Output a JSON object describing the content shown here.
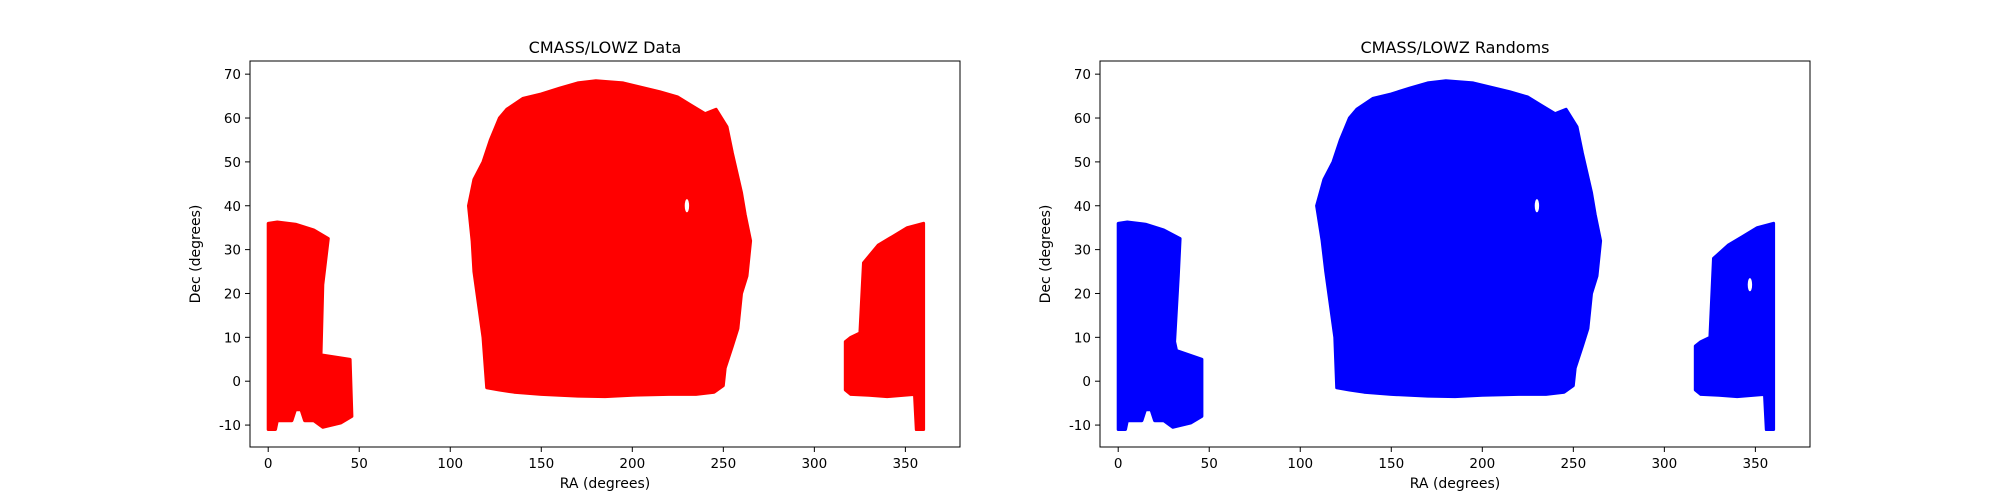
{
  "chart_data": [
    {
      "type": "scatter",
      "title": "CMASS/LOWZ Data",
      "xlabel": "RA (degrees)",
      "ylabel": "Dec (degrees)",
      "xlim": [
        -10,
        380
      ],
      "ylim": [
        -15,
        73
      ],
      "xticks": [
        0,
        50,
        100,
        150,
        200,
        250,
        300,
        350
      ],
      "yticks": [
        -10,
        0,
        10,
        20,
        30,
        40,
        50,
        60,
        70
      ],
      "grid": false,
      "color": "#ff0000",
      "regions": [
        {
          "name": "south-left",
          "boundary": [
            [
              0,
              -11
            ],
            [
              0,
              36
            ],
            [
              5,
              36.3
            ],
            [
              15,
              35.8
            ],
            [
              25,
              34.5
            ],
            [
              33,
              32.5
            ],
            [
              30,
              22
            ],
            [
              29,
              6
            ],
            [
              45,
              5
            ],
            [
              46,
              -8
            ],
            [
              40,
              -9.5
            ],
            [
              30,
              -10.5
            ],
            [
              25,
              -9
            ],
            [
              20,
              -9
            ],
            [
              18,
              -6.5
            ],
            [
              15,
              -6.5
            ],
            [
              13,
              -9
            ],
            [
              5,
              -9
            ],
            [
              4,
              -11
            ]
          ]
        },
        {
          "name": "north",
          "boundary": [
            [
              110,
              40
            ],
            [
              113,
              46
            ],
            [
              118,
              50
            ],
            [
              122,
              55
            ],
            [
              127,
              60
            ],
            [
              131,
              62
            ],
            [
              140,
              64.5
            ],
            [
              150,
              65.5
            ],
            [
              160,
              66.8
            ],
            [
              170,
              68
            ],
            [
              180,
              68.5
            ],
            [
              195,
              68
            ],
            [
              205,
              67
            ],
            [
              215,
              66
            ],
            [
              225,
              64.8
            ],
            [
              232,
              63
            ],
            [
              240,
              61
            ],
            [
              246,
              62
            ],
            [
              252,
              58
            ],
            [
              255,
              52
            ],
            [
              260,
              43
            ],
            [
              262,
              38
            ],
            [
              265,
              32
            ],
            [
              263,
              24
            ],
            [
              260,
              20
            ],
            [
              258,
              12
            ],
            [
              255,
              8
            ],
            [
              251,
              3
            ],
            [
              250,
              -1
            ],
            [
              245,
              -2.5
            ],
            [
              235,
              -3
            ],
            [
              220,
              -3
            ],
            [
              200,
              -3.2
            ],
            [
              185,
              -3.5
            ],
            [
              170,
              -3.4
            ],
            [
              150,
              -3
            ],
            [
              135,
              -2.5
            ],
            [
              127,
              -2
            ],
            [
              120,
              -1.5
            ],
            [
              118,
              10
            ],
            [
              113,
              25
            ],
            [
              112,
              32
            ]
          ]
        },
        {
          "name": "south-right",
          "boundary": [
            [
              317,
              9
            ],
            [
              320,
              10
            ],
            [
              325,
              11
            ],
            [
              327,
              27
            ],
            [
              335,
              31
            ],
            [
              343,
              33
            ],
            [
              351,
              35
            ],
            [
              360,
              36
            ],
            [
              360,
              -11
            ],
            [
              356,
              -11
            ],
            [
              355,
              -3
            ],
            [
              340,
              -3.5
            ],
            [
              330,
              -3.2
            ],
            [
              320,
              -3
            ],
            [
              317,
              -2
            ]
          ]
        }
      ],
      "holes": [
        {
          "ra": 230,
          "dec": 40,
          "rx": 1.2,
          "ry": 1.5
        }
      ]
    },
    {
      "type": "scatter",
      "title": "CMASS/LOWZ Randoms",
      "xlabel": "RA (degrees)",
      "ylabel": "Dec (degrees)",
      "xlim": [
        -10,
        380
      ],
      "ylim": [
        -15,
        73
      ],
      "xticks": [
        0,
        50,
        100,
        150,
        200,
        250,
        300,
        350
      ],
      "yticks": [
        -10,
        0,
        10,
        20,
        30,
        40,
        50,
        60,
        70
      ],
      "grid": false,
      "color": "#0000ff",
      "regions": [
        {
          "name": "south-left",
          "boundary": [
            [
              0,
              -11
            ],
            [
              0,
              36
            ],
            [
              5,
              36.3
            ],
            [
              15,
              35.8
            ],
            [
              25,
              34.5
            ],
            [
              34,
              32.5
            ],
            [
              33,
              24
            ],
            [
              31,
              9
            ],
            [
              32,
              7
            ],
            [
              46,
              5
            ],
            [
              46,
              -8
            ],
            [
              40,
              -9.5
            ],
            [
              30,
              -10.5
            ],
            [
              25,
              -9
            ],
            [
              20,
              -9
            ],
            [
              18,
              -6.5
            ],
            [
              15,
              -6.5
            ],
            [
              13,
              -9
            ],
            [
              5,
              -9
            ],
            [
              4,
              -11
            ]
          ]
        },
        {
          "name": "north",
          "boundary": [
            [
              109,
              40
            ],
            [
              113,
              46
            ],
            [
              118,
              50
            ],
            [
              122,
              55
            ],
            [
              127,
              60
            ],
            [
              131,
              62
            ],
            [
              140,
              64.5
            ],
            [
              150,
              65.5
            ],
            [
              160,
              66.8
            ],
            [
              170,
              68
            ],
            [
              180,
              68.5
            ],
            [
              195,
              68
            ],
            [
              205,
              67
            ],
            [
              215,
              66
            ],
            [
              225,
              64.8
            ],
            [
              232,
              63
            ],
            [
              240,
              61
            ],
            [
              246,
              62
            ],
            [
              252,
              58
            ],
            [
              255,
              52
            ],
            [
              260,
              43
            ],
            [
              262,
              38
            ],
            [
              265,
              32
            ],
            [
              263,
              24
            ],
            [
              260,
              20
            ],
            [
              258,
              12
            ],
            [
              255,
              8
            ],
            [
              251,
              3
            ],
            [
              250,
              -1
            ],
            [
              245,
              -2.5
            ],
            [
              235,
              -3
            ],
            [
              220,
              -3
            ],
            [
              200,
              -3.2
            ],
            [
              185,
              -3.5
            ],
            [
              170,
              -3.4
            ],
            [
              150,
              -3
            ],
            [
              135,
              -2.5
            ],
            [
              127,
              -2
            ],
            [
              120,
              -1.5
            ],
            [
              119,
              10
            ],
            [
              114,
              25
            ],
            [
              112,
              32
            ]
          ]
        },
        {
          "name": "south-right",
          "boundary": [
            [
              317,
              8
            ],
            [
              320,
              9
            ],
            [
              325,
              10
            ],
            [
              327,
              28
            ],
            [
              335,
              31
            ],
            [
              343,
              33
            ],
            [
              351,
              35
            ],
            [
              360,
              36
            ],
            [
              360,
              -11
            ],
            [
              356,
              -11
            ],
            [
              355,
              -3
            ],
            [
              340,
              -3.5
            ],
            [
              330,
              -3.2
            ],
            [
              320,
              -3
            ],
            [
              317,
              -2
            ]
          ]
        }
      ],
      "holes": [
        {
          "ra": 230,
          "dec": 40,
          "rx": 1.2,
          "ry": 1.5
        },
        {
          "ra": 347,
          "dec": 22,
          "rx": 1.2,
          "ry": 1.5
        }
      ]
    }
  ]
}
